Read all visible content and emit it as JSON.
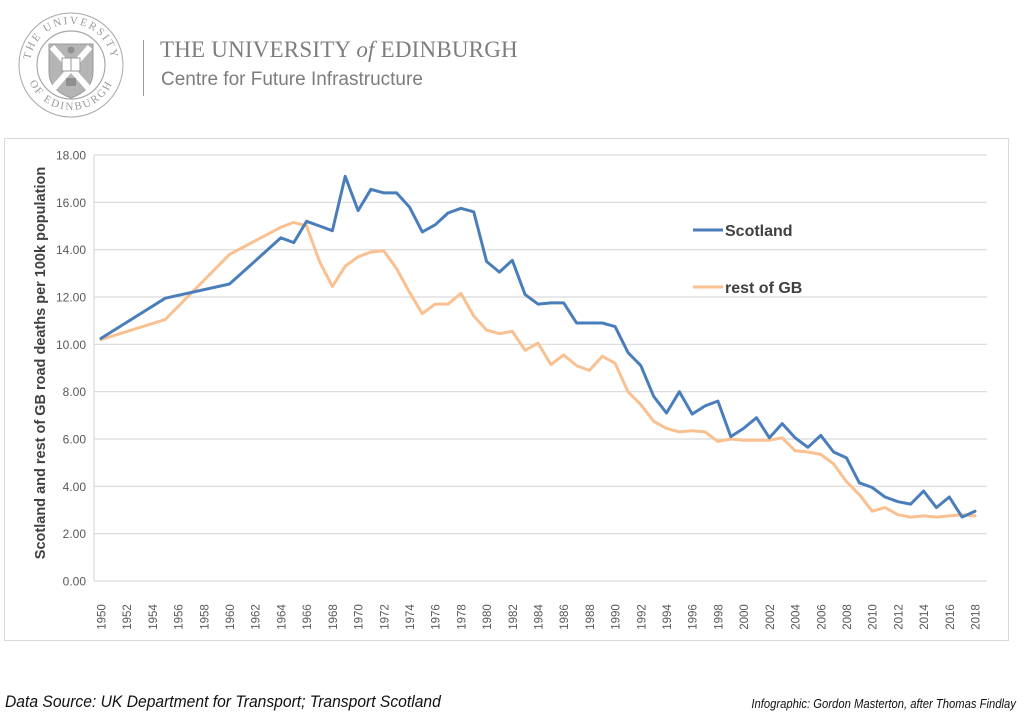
{
  "header": {
    "university_prefix": "THE UNIVERSITY ",
    "university_of": "of",
    "university_suffix": " EDINBURGH",
    "centre": "Centre for Future Infrastructure",
    "seal_ring_text": "THE UNIVERSITY OF EDINBURGH"
  },
  "footer": {
    "source": "Data Source: UK Department for Transport; Transport Scotland",
    "credit": "Infographic: Gordon Masterton, after Thomas Findlay"
  },
  "chart_data": {
    "type": "line",
    "title": "",
    "xlabel": "",
    "ylabel": "Scotland and rest of GB road deaths per 100k population",
    "ylim": [
      0,
      18
    ],
    "xlim": [
      1950,
      2018
    ],
    "y_ticks": [
      "0.00",
      "2.00",
      "4.00",
      "6.00",
      "8.00",
      "10.00",
      "12.00",
      "14.00",
      "16.00",
      "18.00"
    ],
    "x_ticks": [
      "1950",
      "1952",
      "1954",
      "1956",
      "1958",
      "1960",
      "1962",
      "1964",
      "1966",
      "1968",
      "1970",
      "1972",
      "1974",
      "1976",
      "1978",
      "1980",
      "1982",
      "1984",
      "1986",
      "1988",
      "1990",
      "1992",
      "1994",
      "1996",
      "1998",
      "2000",
      "2002",
      "2004",
      "2006",
      "2008",
      "2010",
      "2012",
      "2014",
      "2016",
      "2018"
    ],
    "grid": "horizontal",
    "legend_position": "upper-right, inside plot",
    "series": [
      {
        "name": "Scotland",
        "color": "#4a7ebb",
        "x": [
          1950,
          1955,
          1960,
          1964,
          1965,
          1966,
          1967,
          1968,
          1969,
          1970,
          1971,
          1972,
          1973,
          1974,
          1975,
          1976,
          1977,
          1978,
          1979,
          1980,
          1981,
          1982,
          1983,
          1984,
          1985,
          1986,
          1987,
          1988,
          1989,
          1990,
          1991,
          1992,
          1993,
          1994,
          1995,
          1996,
          1997,
          1998,
          1999,
          2000,
          2001,
          2002,
          2003,
          2004,
          2005,
          2006,
          2007,
          2008,
          2009,
          2010,
          2011,
          2012,
          2013,
          2014,
          2015,
          2016,
          2017,
          2018
        ],
        "values": [
          10.25,
          11.95,
          12.55,
          14.5,
          14.3,
          15.2,
          15.0,
          14.8,
          17.1,
          15.65,
          16.55,
          16.4,
          16.4,
          15.8,
          14.75,
          15.05,
          15.55,
          15.75,
          15.6,
          13.5,
          13.05,
          13.55,
          12.1,
          11.7,
          11.75,
          11.75,
          10.9,
          10.9,
          10.9,
          10.75,
          9.65,
          9.1,
          7.8,
          7.1,
          8.0,
          7.05,
          7.4,
          7.6,
          6.1,
          6.45,
          6.9,
          6.05,
          6.65,
          6.05,
          5.65,
          6.15,
          5.45,
          5.2,
          4.15,
          3.95,
          3.55,
          3.35,
          3.25,
          3.8,
          3.1,
          3.55,
          2.7,
          2.95
        ]
      },
      {
        "name": "rest of GB",
        "color": "#fac090",
        "x": [
          1950,
          1955,
          1960,
          1964,
          1965,
          1966,
          1967,
          1968,
          1969,
          1970,
          1971,
          1972,
          1973,
          1974,
          1975,
          1976,
          1977,
          1978,
          1979,
          1980,
          1981,
          1982,
          1983,
          1984,
          1985,
          1986,
          1987,
          1988,
          1989,
          1990,
          1991,
          1992,
          1993,
          1994,
          1995,
          1996,
          1997,
          1998,
          1999,
          2000,
          2001,
          2002,
          2003,
          2004,
          2005,
          2006,
          2007,
          2008,
          2009,
          2010,
          2011,
          2012,
          2013,
          2014,
          2015,
          2016,
          2017,
          2018
        ],
        "values": [
          10.2,
          11.05,
          13.8,
          14.95,
          15.15,
          15.0,
          13.5,
          12.45,
          13.3,
          13.7,
          13.9,
          13.95,
          13.2,
          12.2,
          11.3,
          11.7,
          11.7,
          12.15,
          11.2,
          10.6,
          10.45,
          10.55,
          9.75,
          10.05,
          9.15,
          9.55,
          9.1,
          8.9,
          9.5,
          9.2,
          8.0,
          7.45,
          6.75,
          6.45,
          6.3,
          6.35,
          6.3,
          5.9,
          6.0,
          5.95,
          5.95,
          5.95,
          6.05,
          5.5,
          5.45,
          5.35,
          4.95,
          4.2,
          3.65,
          2.95,
          3.1,
          2.8,
          2.7,
          2.75,
          2.7,
          2.75,
          2.8,
          2.75
        ]
      }
    ]
  }
}
